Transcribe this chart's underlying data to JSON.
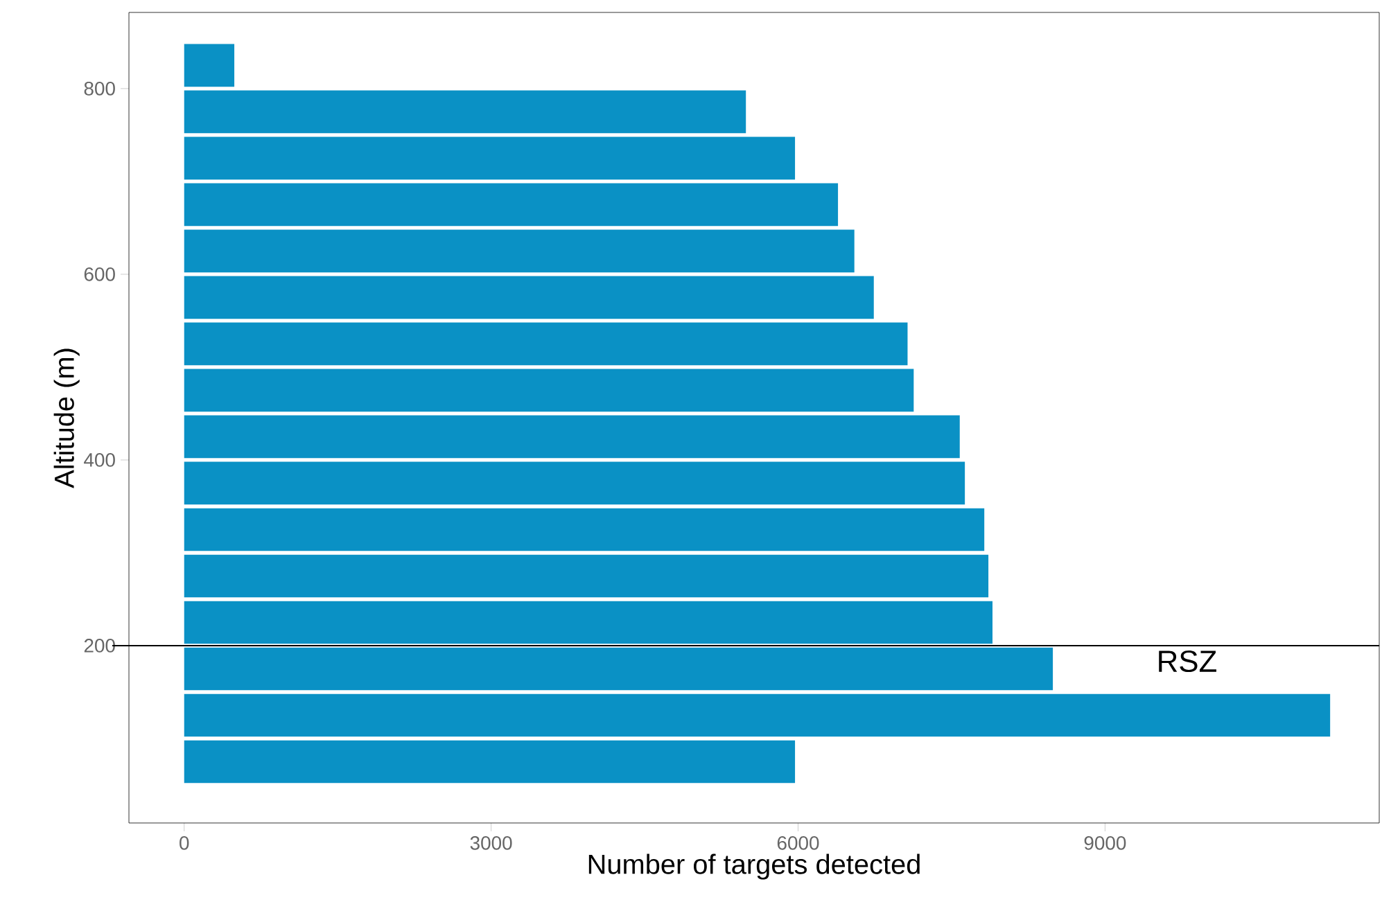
{
  "chart_data": {
    "type": "bar",
    "orientation": "horizontal",
    "xlabel": "Number of targets detected",
    "ylabel": "Altitude (m)",
    "x": [
      75,
      125,
      175,
      225,
      275,
      325,
      375,
      425,
      475,
      525,
      575,
      625,
      675,
      725,
      775,
      825
    ],
    "values": [
      5970,
      11200,
      8490,
      7900,
      7860,
      7820,
      7630,
      7580,
      7130,
      7070,
      6740,
      6550,
      6390,
      5970,
      5490,
      490
    ],
    "color": "#0a91c5",
    "xlim": [
      -540,
      11680
    ],
    "xticks": [
      0,
      3000,
      6000,
      9000
    ],
    "ylim": [
      9,
      882
    ],
    "yticks": [
      200,
      400,
      600,
      800
    ],
    "ref_lines": [
      {
        "axis": "y",
        "value": 200,
        "label": "RSZ",
        "color": "#000000"
      }
    ],
    "grid": false
  }
}
